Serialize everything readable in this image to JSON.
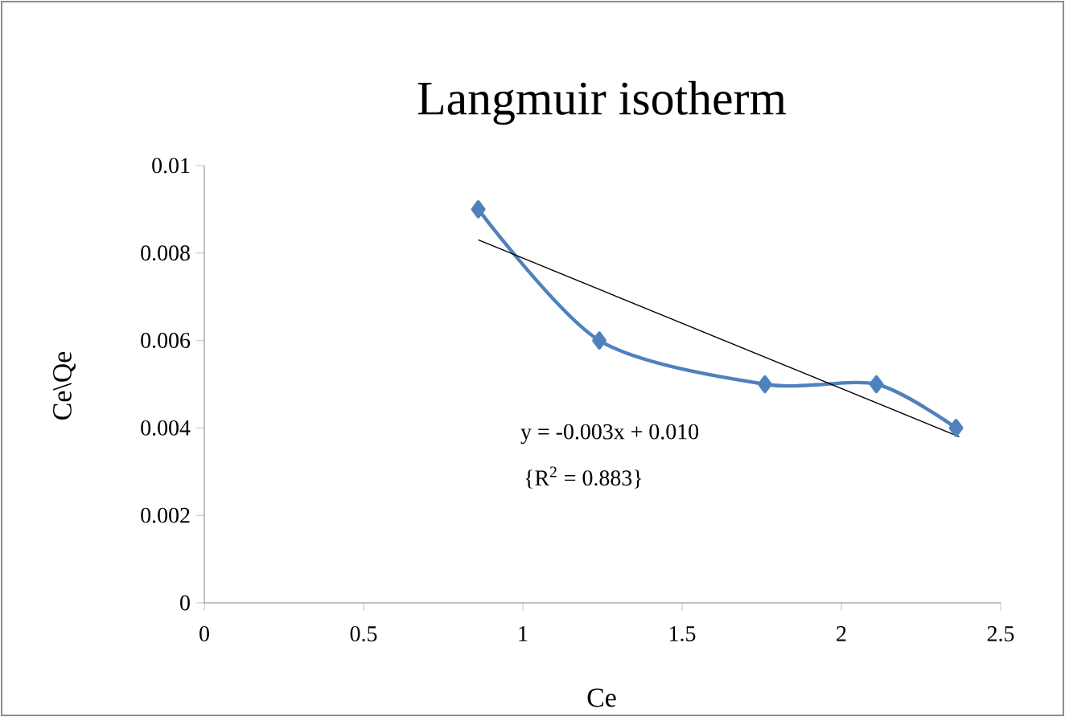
{
  "chart_data": {
    "type": "line",
    "title": "Langmuir isotherm",
    "xlabel": "Ce",
    "ylabel": "Ce\\Qe",
    "xlim": [
      0,
      2.5
    ],
    "xticks": [
      0,
      0.5,
      1,
      1.5,
      2,
      2.5
    ],
    "ylim": [
      0,
      0.01
    ],
    "yticks": [
      0,
      0.002,
      0.004,
      0.006,
      0.008,
      0.01
    ],
    "grid": false,
    "marker": "diamond",
    "line_style": "solid",
    "series": [
      {
        "color": "#4f81bd",
        "x": [
          0.86,
          1.24,
          1.76,
          2.11,
          2.36
        ],
        "values": [
          0.009,
          0.006,
          0.005,
          0.005,
          0.004
        ]
      },
      {
        "type": "line",
        "marker": "none",
        "color": "#000000",
        "x": [
          0.86,
          2.37
        ],
        "values": [
          0.0083,
          0.0038
        ]
      }
    ],
    "annotations": [
      "y = -0.003x + 0.010",
      "{R$^{2}$ = 0.883}"
    ]
  }
}
